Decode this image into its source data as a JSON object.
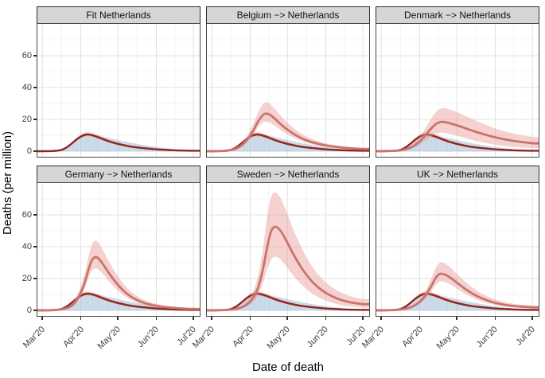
{
  "chart_data": {
    "type": "line",
    "layout": "2x3 faceted grid; each panel: observed daily-death bars + dark-red Netherlands fit line with narrow CI ribbon + red counterfactual mean line with wide pink CI ribbon",
    "xlabel": "Date of death",
    "ylabel": "Deaths (per million)",
    "x_tick_labels": [
      "Mar'20",
      "Apr'20",
      "May'20",
      "Jun'20",
      "Jul'20"
    ],
    "y_tick_labels": [
      "0",
      "20",
      "40",
      "60"
    ],
    "ylim": [
      0,
      80
    ],
    "grid": "major and minor light-grey gridlines on white panel",
    "legend": "none",
    "colors": {
      "fit_line": "#8e2620",
      "mean_line": "#c9736e",
      "ribbon": "#e8938d",
      "bars_fill": "#b9cde0",
      "bars_stroke": "#8fafcc",
      "strip_bg": "#d6d6d6",
      "grid_major": "#e2e2e2",
      "grid_minor": "#f0f0f0",
      "panel_border": "#474747",
      "axis_text": "#3d3d3d"
    },
    "time_unit": "days since Mar 1 2020; month ticks at t = 0, 31, 61, 92, 122",
    "observed_bars": {
      "t_start": 8,
      "daily_values": [
        0.1,
        0.2,
        0.2,
        0.4,
        0.5,
        0.7,
        0.9,
        1.1,
        1.4,
        1.6,
        2.1,
        2.4,
        3.0,
        3.4,
        4.0,
        4.5,
        5.2,
        5.6,
        6.4,
        6.9,
        7.6,
        8.0,
        8.7,
        9.0,
        9.6,
        9.3,
        10.0,
        10.4,
        10.1,
        10.6,
        10.2,
        10.7,
        9.9,
        10.4,
        9.6,
        10.1,
        9.3,
        9.8,
        9.0,
        9.5,
        8.7,
        9.2,
        8.4,
        8.9,
        8.1,
        8.5,
        7.8,
        8.2,
        7.5,
        7.8,
        7.1,
        7.4,
        6.8,
        7.1,
        6.5,
        6.7,
        6.1,
        6.4,
        5.8,
        6.1,
        5.5,
        5.7,
        5.2,
        5.4,
        4.9,
        5.1,
        4.6,
        4.8,
        4.3,
        4.5,
        4.1,
        4.2,
        3.8,
        3.9,
        3.5,
        3.7,
        3.3,
        3.4,
        3.0,
        3.1,
        2.8,
        2.9,
        2.6,
        2.7,
        2.4,
        2.5,
        2.2,
        2.3,
        2.0,
        2.1,
        1.8,
        1.9,
        1.6,
        1.7,
        1.5,
        1.5,
        1.3,
        1.3,
        1.1,
        1.1,
        0.9,
        1.0,
        0.8,
        0.8,
        0.7,
        0.7,
        0.6,
        0.5,
        0.5,
        0.4,
        0.4,
        0.3,
        0.3,
        0.2
      ]
    },
    "netherlands_fit": {
      "t": [
        0,
        8,
        12,
        16,
        20,
        24,
        28,
        32,
        36,
        40,
        44,
        48,
        52,
        56,
        60,
        65,
        70,
        76,
        82,
        90,
        98,
        106,
        114,
        122
      ],
      "mean": [
        0.02,
        0.1,
        0.35,
        1.0,
        2.6,
        5.0,
        7.6,
        9.6,
        10.5,
        10.1,
        9.1,
        7.9,
        6.7,
        5.7,
        4.8,
        3.9,
        3.1,
        2.4,
        1.9,
        1.3,
        0.9,
        0.6,
        0.4,
        0.3
      ],
      "lo": [
        0.0,
        0.05,
        0.25,
        0.8,
        2.2,
        4.3,
        6.6,
        8.4,
        9.3,
        8.9,
        8.0,
        6.9,
        5.8,
        4.9,
        4.1,
        3.3,
        2.6,
        2.0,
        1.6,
        1.1,
        0.7,
        0.5,
        0.3,
        0.2
      ],
      "hi": [
        0.1,
        0.25,
        0.6,
        1.4,
        3.2,
        5.9,
        8.8,
        11.0,
        12.0,
        11.6,
        10.5,
        9.2,
        7.8,
        6.7,
        5.7,
        4.7,
        3.8,
        3.0,
        2.4,
        1.7,
        1.2,
        0.9,
        0.6,
        0.45
      ]
    },
    "facets": [
      {
        "label": "Fit Netherlands",
        "counterfactual": null
      },
      {
        "label": "Belgium −> Netherlands",
        "counterfactual": {
          "t": [
            0,
            10,
            15,
            20,
            25,
            30,
            34,
            38,
            42,
            45,
            48,
            52,
            57,
            62,
            68,
            75,
            83,
            92,
            102,
            112,
            122
          ],
          "mean": [
            0.03,
            0.2,
            0.7,
            1.8,
            4.2,
            8.8,
            13.8,
            19.5,
            23.2,
            23.5,
            22.3,
            19.6,
            16.0,
            13.0,
            10.0,
            7.3,
            5.2,
            3.6,
            2.5,
            1.8,
            1.4
          ],
          "lo": [
            0.0,
            0.12,
            0.5,
            1.4,
            3.3,
            7.0,
            11.0,
            15.6,
            18.3,
            18.4,
            17.4,
            15.3,
            12.5,
            10.2,
            7.8,
            5.7,
            4.0,
            2.7,
            1.9,
            1.3,
            1.0
          ],
          "hi": [
            0.1,
            0.4,
            1.1,
            2.6,
            5.7,
            11.6,
            18.1,
            25.6,
            30.2,
            30.6,
            29.0,
            25.6,
            21.0,
            17.2,
            13.3,
            9.8,
            7.1,
            5.0,
            3.6,
            2.7,
            2.1
          ]
        }
      },
      {
        "label": "Denmark −> Netherlands",
        "counterfactual": {
          "t": [
            0,
            12,
            18,
            24,
            30,
            35,
            40,
            44,
            48,
            52,
            58,
            65,
            72,
            80,
            90,
            100,
            110,
            122
          ],
          "mean": [
            0.03,
            0.3,
            0.9,
            2.3,
            5.4,
            9.5,
            14.0,
            17.0,
            18.4,
            18.2,
            17.0,
            15.2,
            13.3,
            11.3,
            9.1,
            7.4,
            6.1,
            5.0
          ],
          "lo": [
            0.0,
            0.2,
            0.6,
            1.6,
            3.7,
            6.4,
            9.2,
            11.0,
            11.7,
            11.4,
            10.3,
            8.8,
            7.3,
            5.8,
            4.3,
            3.2,
            2.5,
            2.0
          ],
          "hi": [
            0.1,
            0.55,
            1.5,
            3.6,
            7.9,
            13.7,
            20.2,
            24.6,
            26.9,
            26.9,
            25.5,
            23.2,
            20.7,
            18.0,
            14.9,
            12.4,
            10.5,
            9.0
          ]
        }
      },
      {
        "label": "Germany −> Netherlands",
        "counterfactual": {
          "t": [
            0,
            10,
            15,
            20,
            25,
            30,
            34,
            37,
            40,
            43,
            46,
            50,
            55,
            60,
            66,
            73,
            82,
            92,
            102,
            112,
            122
          ],
          "mean": [
            0.03,
            0.2,
            0.6,
            1.5,
            3.8,
            9.5,
            17.0,
            25.0,
            31.5,
            33.5,
            32.0,
            27.8,
            22.0,
            17.0,
            12.0,
            7.9,
            4.7,
            2.8,
            1.8,
            1.2,
            0.9
          ],
          "lo": [
            0.0,
            0.12,
            0.4,
            1.1,
            2.9,
            7.4,
            13.3,
            19.7,
            24.8,
            26.4,
            25.2,
            21.8,
            17.1,
            13.1,
            9.2,
            5.9,
            3.4,
            2.0,
            1.2,
            0.8,
            0.6
          ],
          "hi": [
            0.1,
            0.4,
            1.0,
            2.2,
            5.3,
            12.8,
            22.6,
            33.0,
            41.3,
            43.8,
            41.8,
            36.4,
            29.0,
            22.6,
            16.2,
            10.9,
            6.7,
            4.1,
            2.7,
            1.9,
            1.4
          ]
        }
      },
      {
        "label": "Sweden −> Netherlands",
        "counterfactual": {
          "t": [
            0,
            14,
            20,
            26,
            32,
            37,
            41,
            45,
            48,
            51,
            55,
            60,
            66,
            73,
            81,
            90,
            100,
            110,
            122
          ],
          "mean": [
            0.03,
            0.3,
            1.0,
            2.6,
            6.5,
            13.5,
            25.0,
            41.0,
            50.0,
            52.5,
            50.5,
            44.0,
            35.0,
            26.0,
            18.0,
            12.0,
            7.8,
            5.4,
            3.9
          ],
          "lo": [
            0.0,
            0.2,
            0.7,
            1.8,
            4.4,
            9.0,
            16.5,
            26.5,
            32.0,
            33.7,
            32.3,
            27.8,
            21.6,
            15.7,
            10.6,
            6.8,
            4.2,
            2.7,
            1.8
          ],
          "hi": [
            0.1,
            0.5,
            1.5,
            4.0,
            9.8,
            20.5,
            37.5,
            60.5,
            71.5,
            74.0,
            71.2,
            62.5,
            50.5,
            38.5,
            27.5,
            19.0,
            13.0,
            9.4,
            7.1
          ]
        }
      },
      {
        "label": "UK −> Netherlands",
        "counterfactual": {
          "t": [
            0,
            12,
            18,
            24,
            30,
            35,
            40,
            44,
            47,
            51,
            56,
            62,
            69,
            77,
            86,
            96,
            107,
            122
          ],
          "mean": [
            0.03,
            0.25,
            0.8,
            2.0,
            4.7,
            8.7,
            14.8,
            20.5,
            22.8,
            22.6,
            20.4,
            16.8,
            12.8,
            9.1,
            6.1,
            4.0,
            2.7,
            1.9
          ],
          "lo": [
            0.0,
            0.15,
            0.55,
            1.5,
            3.6,
            6.7,
            11.5,
            16.1,
            18.0,
            17.9,
            16.1,
            13.2,
            9.9,
            6.9,
            4.5,
            2.9,
            1.8,
            1.2
          ],
          "hi": [
            0.1,
            0.45,
            1.2,
            2.8,
            6.2,
            11.5,
            19.5,
            26.8,
            29.8,
            29.6,
            26.8,
            22.2,
            17.2,
            12.5,
            8.6,
            5.9,
            4.1,
            3.0
          ]
        }
      }
    ]
  }
}
